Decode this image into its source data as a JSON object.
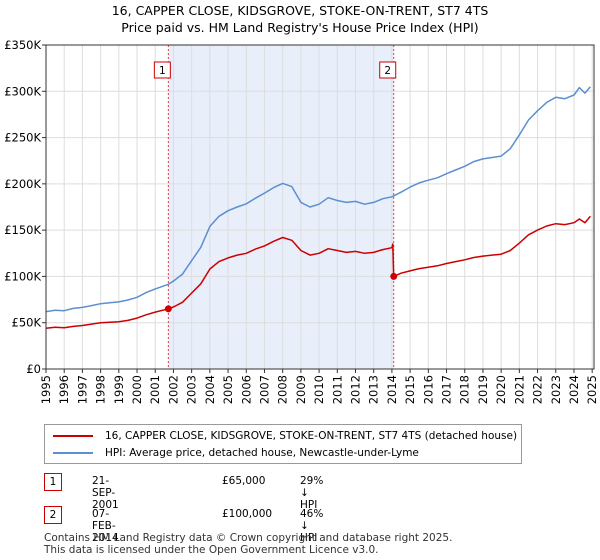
{
  "chart_data": {
    "type": "line",
    "title": "16, CAPPER CLOSE, KIDSGROVE, STOKE-ON-TRENT, ST7 4TS",
    "subtitle": "Price paid vs. HM Land Registry's House Price Index (HPI)",
    "xlim": [
      1995,
      2025.1
    ],
    "ylim": [
      0,
      350000
    ],
    "x_ticks": [
      1995,
      1996,
      1997,
      1998,
      1999,
      2000,
      2001,
      2002,
      2003,
      2004,
      2005,
      2006,
      2007,
      2008,
      2009,
      2010,
      2011,
      2012,
      2013,
      2014,
      2015,
      2016,
      2017,
      2018,
      2019,
      2020,
      2021,
      2022,
      2023,
      2024,
      2025
    ],
    "x_tick_labels": [
      "1995",
      "1996",
      "1997",
      "1998",
      "1999",
      "2000",
      "2001",
      "2002",
      "2003",
      "2004",
      "2005",
      "2006",
      "2007",
      "2008",
      "2009",
      "2010",
      "2011",
      "2012",
      "2013",
      "2014",
      "2015",
      "2016",
      "2017",
      "2018",
      "2019",
      "2020",
      "2021",
      "2022",
      "2023",
      "2024",
      "2025"
    ],
    "y_ticks": [
      0,
      50000,
      100000,
      150000,
      200000,
      250000,
      300000,
      350000
    ],
    "y_tick_labels": [
      "£0",
      "£50K",
      "£100K",
      "£150K",
      "£200K",
      "£250K",
      "£300K",
      "£350K"
    ],
    "grid": true,
    "shaded_region": [
      2001.72,
      2014.1
    ],
    "series": [
      {
        "name": "16, CAPPER CLOSE, KIDSGROVE, STOKE-ON-TRENT, ST7 4TS (detached house)",
        "color": "#cc0000",
        "x": [
          1995.0,
          1995.5,
          1996.0,
          1996.5,
          1997.0,
          1997.5,
          1998.0,
          1998.5,
          1999.0,
          1999.5,
          2000.0,
          2000.5,
          2001.0,
          2001.72,
          2002.0,
          2002.5,
          2003.0,
          2003.5,
          2004.0,
          2004.5,
          2005.0,
          2005.5,
          2006.0,
          2006.5,
          2007.0,
          2007.5,
          2008.0,
          2008.5,
          2009.0,
          2009.5,
          2010.0,
          2010.5,
          2011.0,
          2011.5,
          2012.0,
          2012.5,
          2013.0,
          2013.5,
          2014.0,
          2014.05,
          2014.1,
          2014.5,
          2015.0,
          2015.5,
          2016.0,
          2016.5,
          2017.0,
          2017.5,
          2018.0,
          2018.5,
          2019.0,
          2019.5,
          2020.0,
          2020.5,
          2021.0,
          2021.5,
          2022.0,
          2022.5,
          2023.0,
          2023.5,
          2024.0,
          2024.3,
          2024.6,
          2024.9
        ],
        "values": [
          44000,
          45000,
          44500,
          46000,
          47000,
          48500,
          50000,
          50500,
          51000,
          52500,
          55000,
          58500,
          61500,
          65000,
          67000,
          72000,
          82000,
          92000,
          108000,
          116000,
          120000,
          123000,
          125000,
          129500,
          133000,
          138000,
          142000,
          139000,
          128000,
          123000,
          125000,
          130000,
          128000,
          126000,
          127000,
          125000,
          126000,
          129000,
          131000,
          135000,
          100000,
          103500,
          106000,
          108500,
          110000,
          111500,
          114000,
          116000,
          118000,
          120500,
          122000,
          123000,
          124000,
          128000,
          136000,
          145000,
          150000,
          154500,
          157000,
          156000,
          158000,
          162000,
          158000,
          165000
        ]
      },
      {
        "name": "HPI: Average price, detached house, Newcastle-under-Lyme",
        "color": "#5b8fd0",
        "x": [
          1995.0,
          1995.5,
          1996.0,
          1996.5,
          1997.0,
          1997.5,
          1998.0,
          1998.5,
          1999.0,
          1999.5,
          2000.0,
          2000.5,
          2001.0,
          2001.72,
          2002.0,
          2002.5,
          2003.0,
          2003.5,
          2004.0,
          2004.5,
          2005.0,
          2005.5,
          2006.0,
          2006.5,
          2007.0,
          2007.5,
          2008.0,
          2008.5,
          2009.0,
          2009.5,
          2010.0,
          2010.5,
          2011.0,
          2011.5,
          2012.0,
          2012.5,
          2013.0,
          2013.5,
          2014.0,
          2014.5,
          2015.0,
          2015.5,
          2016.0,
          2016.5,
          2017.0,
          2017.5,
          2018.0,
          2018.5,
          2019.0,
          2019.5,
          2020.0,
          2020.5,
          2021.0,
          2021.5,
          2022.0,
          2022.5,
          2023.0,
          2023.5,
          2024.0,
          2024.3,
          2024.6,
          2024.9
        ],
        "values": [
          62000,
          63500,
          63000,
          65500,
          66500,
          68500,
          70500,
          71500,
          72500,
          74500,
          77500,
          82500,
          86500,
          91500,
          95000,
          102500,
          117000,
          131500,
          154000,
          165000,
          171000,
          175000,
          178500,
          184500,
          190000,
          196000,
          200500,
          197000,
          180000,
          175000,
          178000,
          185000,
          182000,
          180000,
          181000,
          178000,
          180000,
          184000,
          186000,
          191000,
          196500,
          201000,
          204000,
          206500,
          211000,
          215000,
          219000,
          224000,
          227000,
          228500,
          230000,
          238000,
          253000,
          269000,
          279000,
          288000,
          293500,
          292000,
          296000,
          304000,
          298000,
          305000
        ]
      }
    ],
    "sales": [
      {
        "id": "1",
        "x": 2001.72,
        "value": 65000
      },
      {
        "id": "2",
        "x": 2014.1,
        "value": 100000
      }
    ]
  },
  "legend": {
    "property_label": "16, CAPPER CLOSE, KIDSGROVE, STOKE-ON-TRENT, ST7 4TS (detached house)",
    "hpi_label": "HPI: Average price, detached house, Newcastle-under-Lyme"
  },
  "sales_table": [
    {
      "id": "1",
      "date": "21-SEP-2001",
      "price": "£65,000",
      "hpi": "29% ↓ HPI"
    },
    {
      "id": "2",
      "date": "07-FEB-2014",
      "price": "£100,000",
      "hpi": "46% ↓ HPI"
    }
  ],
  "footer": {
    "line1": "Contains HM Land Registry data © Crown copyright and database right 2025.",
    "line2": "This data is licensed under the Open Government Licence v3.0."
  }
}
